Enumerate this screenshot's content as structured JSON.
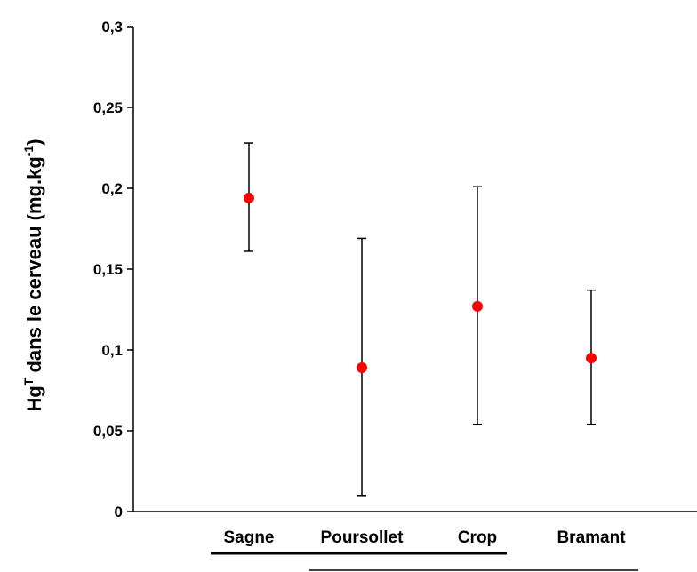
{
  "chart_data": {
    "type": "scatter",
    "categories": [
      "Sagne",
      "Poursollet",
      "Crop",
      "Bramant"
    ],
    "series": [
      {
        "values": [
          0.194,
          0.089,
          0.127,
          0.095
        ],
        "error_low": [
          0.161,
          0.01,
          0.054,
          0.054
        ],
        "error_high": [
          0.228,
          0.169,
          0.201,
          0.137
        ]
      }
    ],
    "ylabel_parts": {
      "base": "Hg",
      "sup": "T",
      "rest": " dans le cerveau (mg.kg",
      "exp": "-1",
      "close": ")"
    },
    "ylim": [
      0,
      0.3
    ],
    "yticks": [
      0,
      0.05,
      0.1,
      0.15,
      0.2,
      0.25,
      0.3
    ],
    "ytick_labels": [
      "0",
      "0,05",
      "0,1",
      "0,15",
      "0,2",
      "0,25",
      "0,3"
    ],
    "grid": false,
    "legend": "none",
    "colors": {
      "point": "#ff0000",
      "axis": "#000000",
      "errorbar": "#000000"
    }
  }
}
